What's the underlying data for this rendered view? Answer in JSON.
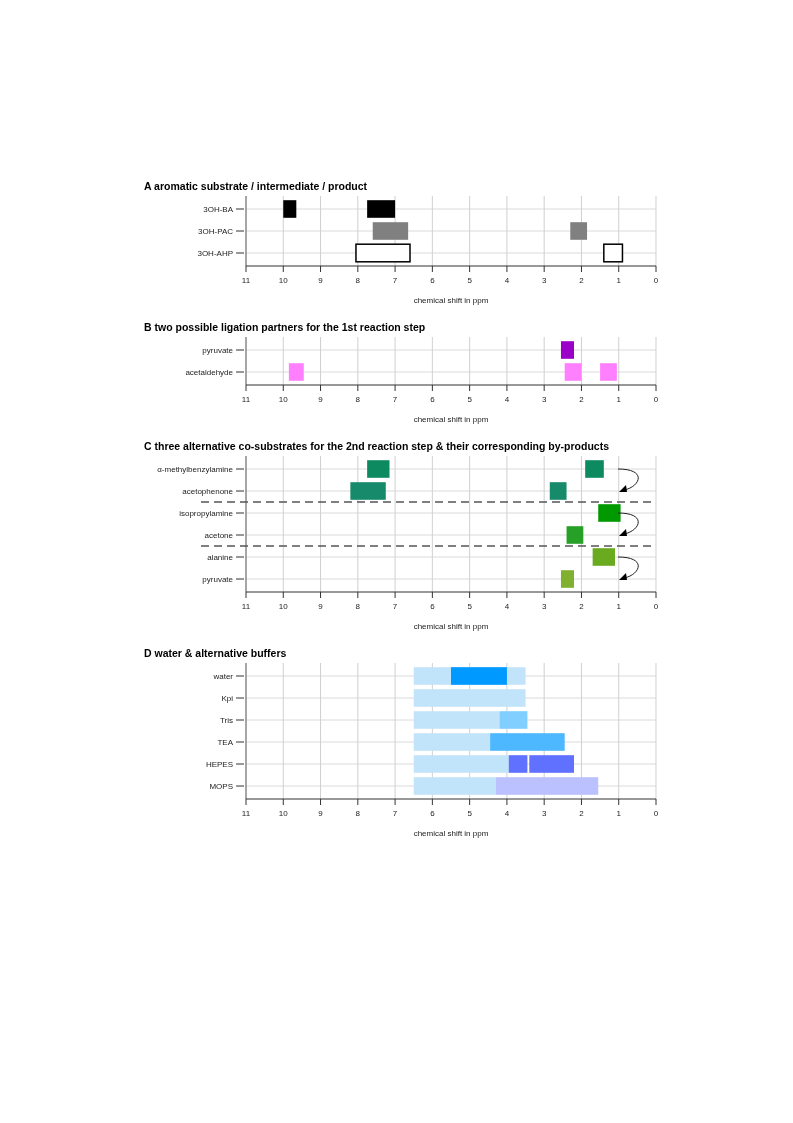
{
  "chart_data": [
    {
      "type": "bar",
      "orientation": "horizontal",
      "title": "A aromatic substrate / intermediate / product",
      "xlabel": "chemical shift in ppm",
      "categories": [
        "3OH-BA",
        "3OH-PAC",
        "3OH-AHP"
      ],
      "xlim": [
        11,
        0
      ],
      "xticks": [
        11,
        10,
        9,
        8,
        7,
        6,
        5,
        4,
        3,
        2,
        1,
        0
      ],
      "grid": true,
      "series": [
        {
          "colors": [
            "#000000",
            "#808080",
            "#ffffff"
          ],
          "values": [
            0.35,
            0.95,
            1.45
          ],
          "base": [
            9.65,
            6.65,
            6.6
          ]
        },
        {
          "colors": [
            "#000000",
            "#808080",
            "#ffffff"
          ],
          "values": [
            0.75,
            0.45,
            0.5
          ],
          "base": [
            7.0,
            1.85,
            0.9
          ]
        }
      ]
    },
    {
      "type": "bar",
      "orientation": "horizontal",
      "title": "B two possible ligation partners for the 1st reaction step",
      "xlabel": "chemical shift in ppm",
      "categories": [
        "pyruvate",
        "acetaldehyde"
      ],
      "xlim": [
        11,
        0
      ],
      "xticks": [
        11,
        10,
        9,
        8,
        7,
        6,
        5,
        4,
        3,
        2,
        1,
        0
      ],
      "grid": true,
      "series": [
        {
          "colors": [
            "#9b00c8",
            "#ff80ff"
          ],
          "values": [
            0.35,
            0.4
          ],
          "base": [
            2.2,
            9.45
          ]
        },
        {
          "colors": [
            null,
            "#ff80ff"
          ],
          "values": [
            null,
            0.45
          ],
          "base": [
            null,
            2.0
          ]
        },
        {
          "colors": [
            null,
            "#ff80ff"
          ],
          "values": [
            null,
            0.45
          ],
          "base": [
            null,
            1.05
          ]
        }
      ]
    },
    {
      "type": "bar",
      "orientation": "horizontal",
      "title": "C three alternative co-substrates for the 2nd reaction step & their corresponding by-products",
      "xlabel": "chemical shift in ppm",
      "categories": [
        "α-methylbenzylamine",
        "acetophenone",
        "isopropylamine",
        "acetone",
        "alanine",
        "pyruvate"
      ],
      "xlim": [
        11,
        0
      ],
      "xticks": [
        11,
        10,
        9,
        8,
        7,
        6,
        5,
        4,
        3,
        2,
        1,
        0
      ],
      "grid": true,
      "series": [
        {
          "colors": [
            "#0e8a60",
            "#168a6a",
            "#009a00",
            "#27a027",
            "#6aaa1e",
            "#80b030"
          ],
          "values": [
            0.6,
            0.95,
            0.6,
            0.45,
            0.6,
            0.35
          ],
          "base": [
            7.15,
            7.25,
            0.95,
            1.95,
            1.1,
            2.2
          ]
        },
        {
          "colors": [
            "#0e8a60",
            "#168a6a",
            null,
            null,
            null,
            null
          ],
          "values": [
            0.5,
            0.45,
            null,
            null,
            null,
            null
          ],
          "base": [
            1.4,
            2.4,
            null,
            null,
            null,
            null
          ]
        }
      ]
    },
    {
      "type": "bar",
      "orientation": "horizontal",
      "title": "D water & alternative buffers",
      "xlabel": "chemical shift in ppm",
      "categories": [
        "water",
        "Kpi",
        "Tris",
        "TEA",
        "HEPES",
        "MOPS"
      ],
      "xlim": [
        11,
        0
      ],
      "xticks": [
        11,
        10,
        9,
        8,
        7,
        6,
        5,
        4,
        3,
        2,
        1,
        0
      ],
      "grid": true,
      "series": [
        {
          "color": "#c2e4fa",
          "values": [
            3.0,
            3.0,
            2.3,
            2.05,
            2.55,
            2.2
          ],
          "base": [
            3.5,
            3.5,
            4.2,
            4.45,
            3.95,
            4.3
          ]
        },
        {
          "colors": [
            "#0099ff",
            null,
            "#80cfff",
            "#4db8ff",
            "#6070ff",
            "#bbc0ff"
          ],
          "values": [
            1.5,
            null,
            0.75,
            2.0,
            0.5,
            2.75
          ],
          "base": [
            4.0,
            null,
            3.45,
            2.45,
            3.45,
            1.55
          ]
        },
        {
          "color": "#6070ff",
          "values": [
            null,
            null,
            null,
            null,
            1.2,
            null
          ],
          "base": [
            null,
            null,
            null,
            null,
            2.2,
            null
          ]
        }
      ]
    }
  ]
}
